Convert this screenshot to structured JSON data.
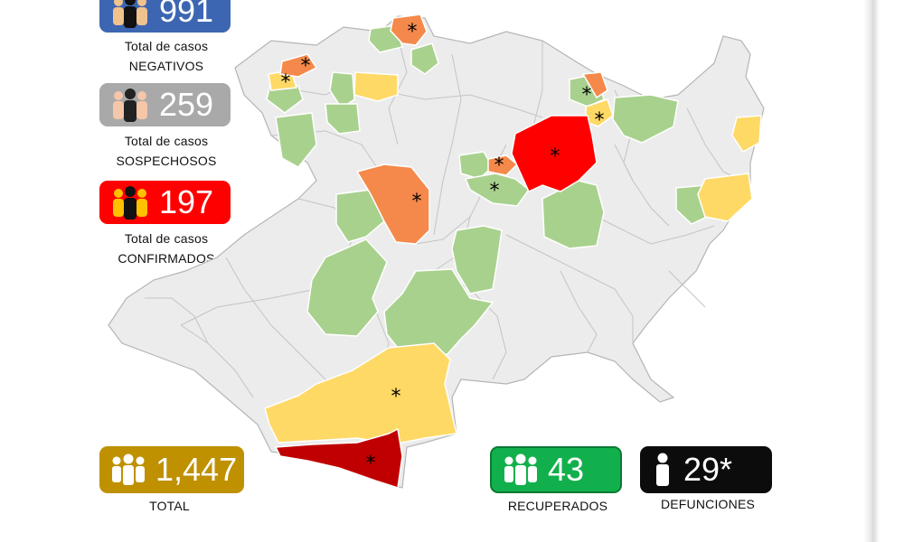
{
  "colors": {
    "negativos": "#3c66b1",
    "sospechosos": "#a9a9a9",
    "confirmados": "#ff0000",
    "total": "#bf9000",
    "recuperados": "#12b04c",
    "defunciones": "#0c0c0c",
    "map_level_green": "#a9d18e",
    "map_level_yellow": "#ffd966",
    "map_level_orange": "#f4894b",
    "map_level_red": "#ff0000",
    "map_level_darkred": "#c00000",
    "map_no_cases": "#ececec"
  },
  "negativos": {
    "value": "991",
    "line1": "Total de casos",
    "line2": "NEGATIVOS",
    "icon": "people-icon"
  },
  "sospechosos": {
    "value": "259",
    "line1": "Total de casos",
    "line2": "SOSPECHOSOS",
    "icon": "people-icon"
  },
  "confirmados": {
    "value": "197",
    "line1": "Total de casos",
    "line2": "CONFIRMADOS",
    "icon": "people-icon"
  },
  "total": {
    "value": "1,447",
    "label": "TOTAL",
    "icon": "group-icon"
  },
  "recuperados": {
    "value": "43",
    "label": "RECUPERADOS",
    "icon": "group-icon"
  },
  "defunciones": {
    "value": "29*",
    "label": "DEFUNCIONES",
    "icon": "person-icon"
  },
  "map": {
    "marker": "*"
  }
}
